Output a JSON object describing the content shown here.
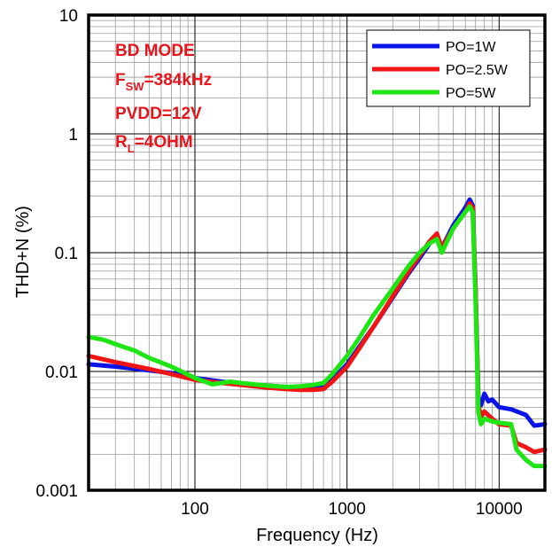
{
  "chart_data": {
    "type": "line",
    "xlabel": "Frequency (Hz)",
    "ylabel": "THD+N (%)",
    "x_scale": "log",
    "y_scale": "log",
    "xlim": [
      20,
      20000
    ],
    "ylim": [
      0.001,
      10
    ],
    "x_ticks": [
      100,
      1000,
      10000
    ],
    "x_tick_labels": [
      "100",
      "1000",
      "10000"
    ],
    "y_ticks": [
      0.001,
      0.01,
      0.1,
      1,
      10
    ],
    "y_tick_labels": [
      "0.001",
      "0.01",
      "0.1",
      "1",
      "10"
    ],
    "grid": true,
    "legend_position": "top-right",
    "annotations": {
      "mode": "BD MODE",
      "fsw_main": "F",
      "fsw_sub": "SW",
      "fsw_value": "=384kHz",
      "pvdd": "PVDD=12V",
      "rl_main": "R",
      "rl_sub": "L",
      "rl_value": "=4OHM",
      "color": "#e8141c"
    },
    "series": [
      {
        "name": "PO=1W",
        "color": "#0a14e6",
        "points": [
          [
            20,
            0.0115
          ],
          [
            30,
            0.011
          ],
          [
            50,
            0.0102
          ],
          [
            70,
            0.0097
          ],
          [
            100,
            0.0088
          ],
          [
            150,
            0.0082
          ],
          [
            200,
            0.0079
          ],
          [
            300,
            0.0076
          ],
          [
            400,
            0.0074
          ],
          [
            500,
            0.0073
          ],
          [
            600,
            0.0072
          ],
          [
            700,
            0.0073
          ],
          [
            800,
            0.0085
          ],
          [
            1000,
            0.0115
          ],
          [
            1200,
            0.016
          ],
          [
            1500,
            0.024
          ],
          [
            2000,
            0.042
          ],
          [
            2500,
            0.065
          ],
          [
            3000,
            0.09
          ],
          [
            3500,
            0.12
          ],
          [
            3900,
            0.14
          ],
          [
            4200,
            0.11
          ],
          [
            5000,
            0.17
          ],
          [
            6000,
            0.24
          ],
          [
            6400,
            0.28
          ],
          [
            6700,
            0.25
          ],
          [
            7000,
            0.05
          ],
          [
            7300,
            0.006
          ],
          [
            7600,
            0.0052
          ],
          [
            8000,
            0.0065
          ],
          [
            8500,
            0.0056
          ],
          [
            9000,
            0.0058
          ],
          [
            10000,
            0.005
          ],
          [
            12000,
            0.0048
          ],
          [
            15000,
            0.0043
          ],
          [
            17000,
            0.0035
          ],
          [
            20000,
            0.0036
          ]
        ]
      },
      {
        "name": "PO=2.5W",
        "color": "#f01414",
        "points": [
          [
            20,
            0.0135
          ],
          [
            30,
            0.012
          ],
          [
            50,
            0.0105
          ],
          [
            70,
            0.0095
          ],
          [
            100,
            0.0085
          ],
          [
            150,
            0.008
          ],
          [
            200,
            0.0077
          ],
          [
            300,
            0.0073
          ],
          [
            400,
            0.0071
          ],
          [
            500,
            0.007
          ],
          [
            600,
            0.007
          ],
          [
            700,
            0.0071
          ],
          [
            800,
            0.0082
          ],
          [
            1000,
            0.011
          ],
          [
            1200,
            0.0155
          ],
          [
            1500,
            0.024
          ],
          [
            2000,
            0.043
          ],
          [
            2500,
            0.067
          ],
          [
            3000,
            0.095
          ],
          [
            3500,
            0.125
          ],
          [
            3900,
            0.145
          ],
          [
            4200,
            0.11
          ],
          [
            5000,
            0.16
          ],
          [
            6000,
            0.22
          ],
          [
            6400,
            0.26
          ],
          [
            6700,
            0.24
          ],
          [
            7000,
            0.05
          ],
          [
            7300,
            0.0052
          ],
          [
            7600,
            0.0042
          ],
          [
            8000,
            0.0046
          ],
          [
            9000,
            0.004
          ],
          [
            10000,
            0.0036
          ],
          [
            12000,
            0.0035
          ],
          [
            13000,
            0.0025
          ],
          [
            15000,
            0.0023
          ],
          [
            17000,
            0.0021
          ],
          [
            20000,
            0.0022
          ]
        ]
      },
      {
        "name": "PO=5W",
        "color": "#1ee614",
        "points": [
          [
            20,
            0.0195
          ],
          [
            25,
            0.0185
          ],
          [
            30,
            0.017
          ],
          [
            40,
            0.015
          ],
          [
            50,
            0.013
          ],
          [
            70,
            0.011
          ],
          [
            100,
            0.0088
          ],
          [
            130,
            0.0078
          ],
          [
            170,
            0.0082
          ],
          [
            200,
            0.008
          ],
          [
            300,
            0.0076
          ],
          [
            400,
            0.0074
          ],
          [
            500,
            0.0075
          ],
          [
            600,
            0.0077
          ],
          [
            700,
            0.008
          ],
          [
            800,
            0.0095
          ],
          [
            1000,
            0.0135
          ],
          [
            1200,
            0.019
          ],
          [
            1500,
            0.03
          ],
          [
            2000,
            0.05
          ],
          [
            2500,
            0.075
          ],
          [
            3000,
            0.1
          ],
          [
            3500,
            0.12
          ],
          [
            3900,
            0.13
          ],
          [
            4200,
            0.1
          ],
          [
            5000,
            0.16
          ],
          [
            6000,
            0.22
          ],
          [
            6400,
            0.245
          ],
          [
            6700,
            0.22
          ],
          [
            7000,
            0.04
          ],
          [
            7300,
            0.0045
          ],
          [
            7600,
            0.0036
          ],
          [
            8000,
            0.004
          ],
          [
            9000,
            0.0038
          ],
          [
            10000,
            0.0037
          ],
          [
            12000,
            0.0036
          ],
          [
            13000,
            0.0022
          ],
          [
            15000,
            0.0018
          ],
          [
            17000,
            0.0016
          ],
          [
            20000,
            0.0016
          ]
        ]
      }
    ]
  }
}
